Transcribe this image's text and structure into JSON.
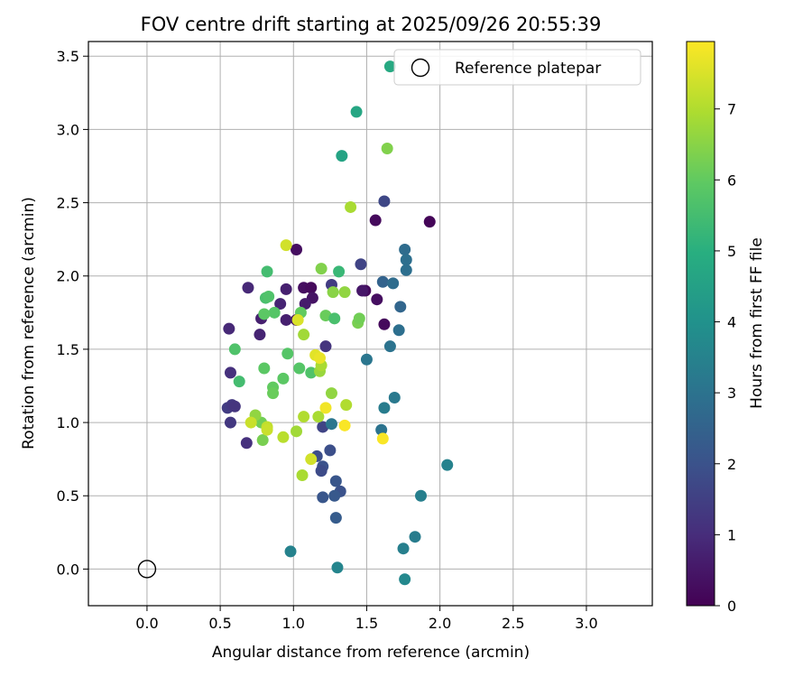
{
  "chart_data": {
    "type": "scatter",
    "title": "FOV centre drift starting at 2025/09/26 20:55:39",
    "xlabel": "Angular distance from reference (arcmin)",
    "ylabel": "Rotation from reference (arcmin)",
    "xlim": [
      -0.4,
      3.45
    ],
    "ylim": [
      -0.25,
      3.6
    ],
    "x_ticks": [
      "0.0",
      "0.5",
      "1.0",
      "1.5",
      "2.0",
      "2.5",
      "3.0"
    ],
    "y_ticks": [
      "0.0",
      "0.5",
      "1.0",
      "1.5",
      "2.0",
      "2.5",
      "3.0",
      "3.5"
    ],
    "grid": true,
    "legend": {
      "position": "top-right",
      "label": "Reference platepar"
    },
    "reference_point": {
      "x": 0.0,
      "y": 0.0
    },
    "colorbar": {
      "label": "Hours from first FF file",
      "range": [
        0,
        7.95
      ],
      "ticks": [
        "0",
        "1",
        "2",
        "3",
        "4",
        "5",
        "6",
        "7"
      ],
      "colormap": "viridis"
    },
    "points": [
      {
        "x": 1.93,
        "y": 2.37,
        "h": 0.1
      },
      {
        "x": 1.56,
        "y": 2.38,
        "h": 0.2
      },
      {
        "x": 1.02,
        "y": 2.18,
        "h": 0.3
      },
      {
        "x": 1.49,
        "y": 1.9,
        "h": 0.2
      },
      {
        "x": 1.07,
        "y": 1.92,
        "h": 0.3
      },
      {
        "x": 1.12,
        "y": 1.92,
        "h": 0.2
      },
      {
        "x": 1.57,
        "y": 1.84,
        "h": 0.3
      },
      {
        "x": 1.62,
        "y": 1.67,
        "h": 0.2
      },
      {
        "x": 1.13,
        "y": 1.85,
        "h": 0.4
      },
      {
        "x": 1.02,
        "y": 1.7,
        "h": 0.3
      },
      {
        "x": 1.47,
        "y": 1.9,
        "h": 0.5
      },
      {
        "x": 1.08,
        "y": 1.81,
        "h": 0.6
      },
      {
        "x": 0.95,
        "y": 1.91,
        "h": 0.7
      },
      {
        "x": 0.69,
        "y": 1.92,
        "h": 0.9
      },
      {
        "x": 0.91,
        "y": 1.81,
        "h": 0.8
      },
      {
        "x": 0.95,
        "y": 1.7,
        "h": 0.7
      },
      {
        "x": 0.78,
        "y": 1.71,
        "h": 0.7
      },
      {
        "x": 0.56,
        "y": 1.64,
        "h": 0.9
      },
      {
        "x": 0.77,
        "y": 1.6,
        "h": 0.8
      },
      {
        "x": 1.22,
        "y": 1.52,
        "h": 1.2
      },
      {
        "x": 0.57,
        "y": 1.34,
        "h": 1.1
      },
      {
        "x": 0.55,
        "y": 1.1,
        "h": 1.4
      },
      {
        "x": 0.58,
        "y": 1.12,
        "h": 1.3
      },
      {
        "x": 0.6,
        "y": 1.11,
        "h": 1.2
      },
      {
        "x": 0.57,
        "y": 1.0,
        "h": 1.3
      },
      {
        "x": 0.68,
        "y": 0.86,
        "h": 1.1
      },
      {
        "x": 1.26,
        "y": 1.94,
        "h": 1.4
      },
      {
        "x": 1.46,
        "y": 2.08,
        "h": 1.6
      },
      {
        "x": 1.62,
        "y": 2.51,
        "h": 1.7
      },
      {
        "x": 1.2,
        "y": 0.97,
        "h": 1.6
      },
      {
        "x": 1.16,
        "y": 0.77,
        "h": 1.9
      },
      {
        "x": 1.2,
        "y": 0.7,
        "h": 2.0
      },
      {
        "x": 1.19,
        "y": 0.67,
        "h": 1.8
      },
      {
        "x": 1.25,
        "y": 0.81,
        "h": 1.9
      },
      {
        "x": 1.29,
        "y": 0.6,
        "h": 2.1
      },
      {
        "x": 1.32,
        "y": 0.53,
        "h": 2.0
      },
      {
        "x": 1.28,
        "y": 0.5,
        "h": 2.2
      },
      {
        "x": 1.2,
        "y": 0.49,
        "h": 2.1
      },
      {
        "x": 1.29,
        "y": 0.35,
        "h": 2.3
      },
      {
        "x": 1.61,
        "y": 1.96,
        "h": 2.5
      },
      {
        "x": 1.73,
        "y": 1.79,
        "h": 2.6
      },
      {
        "x": 1.76,
        "y": 2.18,
        "h": 2.8
      },
      {
        "x": 1.77,
        "y": 2.11,
        "h": 2.9
      },
      {
        "x": 1.77,
        "y": 2.04,
        "h": 2.9
      },
      {
        "x": 1.68,
        "y": 1.95,
        "h": 2.8
      },
      {
        "x": 1.72,
        "y": 1.63,
        "h": 2.9
      },
      {
        "x": 1.66,
        "y": 1.52,
        "h": 3.0
      },
      {
        "x": 1.5,
        "y": 1.43,
        "h": 3.1
      },
      {
        "x": 1.69,
        "y": 1.17,
        "h": 3.2
      },
      {
        "x": 1.62,
        "y": 1.1,
        "h": 3.3
      },
      {
        "x": 1.26,
        "y": 0.99,
        "h": 3.1
      },
      {
        "x": 1.6,
        "y": 0.95,
        "h": 3.0
      },
      {
        "x": 2.05,
        "y": 0.71,
        "h": 3.5
      },
      {
        "x": 1.87,
        "y": 0.5,
        "h": 3.4
      },
      {
        "x": 1.83,
        "y": 0.22,
        "h": 3.3
      },
      {
        "x": 1.75,
        "y": 0.14,
        "h": 3.4
      },
      {
        "x": 0.98,
        "y": 0.12,
        "h": 3.5
      },
      {
        "x": 1.3,
        "y": 0.01,
        "h": 3.6
      },
      {
        "x": 1.76,
        "y": -0.07,
        "h": 3.7
      },
      {
        "x": 1.33,
        "y": 2.82,
        "h": 4.6
      },
      {
        "x": 1.43,
        "y": 3.12,
        "h": 4.7
      },
      {
        "x": 1.66,
        "y": 3.43,
        "h": 4.8
      },
      {
        "x": 0.82,
        "y": 2.03,
        "h": 5.5
      },
      {
        "x": 1.31,
        "y": 2.03,
        "h": 5.3
      },
      {
        "x": 0.81,
        "y": 1.85,
        "h": 5.6
      },
      {
        "x": 0.83,
        "y": 1.86,
        "h": 5.7
      },
      {
        "x": 0.87,
        "y": 1.75,
        "h": 5.8
      },
      {
        "x": 0.8,
        "y": 1.74,
        "h": 5.9
      },
      {
        "x": 1.05,
        "y": 1.75,
        "h": 6.0
      },
      {
        "x": 1.22,
        "y": 1.73,
        "h": 6.1
      },
      {
        "x": 1.28,
        "y": 1.71,
        "h": 5.6
      },
      {
        "x": 0.6,
        "y": 1.5,
        "h": 5.7
      },
      {
        "x": 0.96,
        "y": 1.47,
        "h": 5.8
      },
      {
        "x": 0.8,
        "y": 1.37,
        "h": 5.9
      },
      {
        "x": 1.04,
        "y": 1.37,
        "h": 5.8
      },
      {
        "x": 1.12,
        "y": 1.34,
        "h": 5.7
      },
      {
        "x": 0.93,
        "y": 1.3,
        "h": 5.9
      },
      {
        "x": 0.63,
        "y": 1.28,
        "h": 5.5
      },
      {
        "x": 0.86,
        "y": 1.24,
        "h": 6.0
      },
      {
        "x": 0.86,
        "y": 1.2,
        "h": 6.1
      },
      {
        "x": 0.78,
        "y": 1.0,
        "h": 6.2
      },
      {
        "x": 0.79,
        "y": 0.88,
        "h": 6.3
      },
      {
        "x": 1.19,
        "y": 2.05,
        "h": 6.4
      },
      {
        "x": 1.27,
        "y": 1.89,
        "h": 6.5
      },
      {
        "x": 1.35,
        "y": 1.89,
        "h": 6.6
      },
      {
        "x": 1.44,
        "y": 1.68,
        "h": 6.3
      },
      {
        "x": 1.45,
        "y": 1.71,
        "h": 6.2
      },
      {
        "x": 1.07,
        "y": 1.6,
        "h": 6.8
      },
      {
        "x": 1.18,
        "y": 1.35,
        "h": 6.7
      },
      {
        "x": 1.19,
        "y": 1.39,
        "h": 6.9
      },
      {
        "x": 1.26,
        "y": 1.2,
        "h": 6.6
      },
      {
        "x": 1.36,
        "y": 1.12,
        "h": 7.0
      },
      {
        "x": 1.07,
        "y": 1.04,
        "h": 7.0
      },
      {
        "x": 1.17,
        "y": 1.04,
        "h": 6.9
      },
      {
        "x": 0.74,
        "y": 1.05,
        "h": 6.6
      },
      {
        "x": 1.02,
        "y": 0.94,
        "h": 6.8
      },
      {
        "x": 0.93,
        "y": 0.9,
        "h": 7.1
      },
      {
        "x": 1.06,
        "y": 0.64,
        "h": 6.9
      },
      {
        "x": 1.64,
        "y": 2.87,
        "h": 6.4
      },
      {
        "x": 1.39,
        "y": 2.47,
        "h": 6.9
      },
      {
        "x": 0.95,
        "y": 2.21,
        "h": 7.4
      },
      {
        "x": 1.03,
        "y": 1.7,
        "h": 7.5
      },
      {
        "x": 1.15,
        "y": 1.46,
        "h": 7.6
      },
      {
        "x": 1.18,
        "y": 1.44,
        "h": 7.7
      },
      {
        "x": 1.22,
        "y": 1.1,
        "h": 7.8
      },
      {
        "x": 1.35,
        "y": 0.98,
        "h": 7.9
      },
      {
        "x": 1.61,
        "y": 0.89,
        "h": 7.9
      },
      {
        "x": 1.12,
        "y": 0.75,
        "h": 7.4
      },
      {
        "x": 0.71,
        "y": 1.0,
        "h": 7.3
      },
      {
        "x": 0.82,
        "y": 0.97,
        "h": 7.2
      },
      {
        "x": 0.82,
        "y": 0.95,
        "h": 7.3
      }
    ]
  }
}
